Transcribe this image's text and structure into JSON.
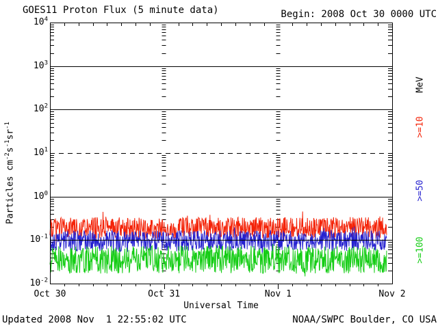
{
  "header": {
    "title": "GOES11 Proton Flux (5 minute data)",
    "begin_label": "Begin: 2008 Oct 30 0000 UTC"
  },
  "footer": {
    "updated": "Updated 2008 Nov  1 22:55:02 UTC",
    "source": "NOAA/SWPC Boulder, CO USA"
  },
  "chart_data": {
    "type": "line",
    "title": "GOES11 Proton Flux (5 minute data)",
    "begin": "2008 Oct 30 0000 UTC",
    "updated": "2008 Nov  1 22:55:02 UTC",
    "xlabel": "Universal Time",
    "ylabel_parts": [
      {
        "t": "Particles cm",
        "sup": false
      },
      {
        "t": "-2",
        "sup": true
      },
      {
        "t": "s",
        "sup": false
      },
      {
        "t": "-1",
        "sup": true
      },
      {
        "t": "sr",
        "sup": false
      },
      {
        "t": "-1",
        "sup": true
      }
    ],
    "x_tick_labels": [
      "Oct 30",
      "Oct 31",
      "Nov 1",
      "Nov 2"
    ],
    "x_days": 3,
    "minutes_per_point": 5,
    "y_base": "10",
    "y_tick_exponents": [
      "4",
      "3",
      "2",
      "1",
      "0",
      "-1",
      "-2"
    ],
    "ylim_log10": [
      -2,
      4
    ],
    "grid_solid_exponents": [
      3,
      2,
      0,
      -1
    ],
    "event_threshold_line_log10": 1,
    "legend_unit": "MeV",
    "legend_unit_color": "#000000",
    "series": [
      {
        "name": "p10",
        "label": ">=10",
        "color": "#f42308",
        "log10_mean": -0.72,
        "log10_amplitude": 0.25,
        "spike_chance": 0.05,
        "spike_log10": 0.15,
        "approx_flux_range": [
          0.12,
          0.45
        ]
      },
      {
        "name": "p50",
        "label": ">=50",
        "color": "#2622cf",
        "log10_mean": -1.02,
        "log10_amplitude": 0.24,
        "spike_chance": 0.04,
        "spike_log10": 0.1,
        "approx_flux_range": [
          0.055,
          0.18
        ]
      },
      {
        "name": "p100",
        "label": ">=100",
        "color": "#15cd15",
        "log10_mean": -1.45,
        "log10_amplitude": 0.32,
        "spike_chance": 0.03,
        "spike_log10": 0.12,
        "approx_flux_range": [
          0.015,
          0.09
        ]
      }
    ],
    "points_count": 851,
    "noise_seed": 20081101
  }
}
